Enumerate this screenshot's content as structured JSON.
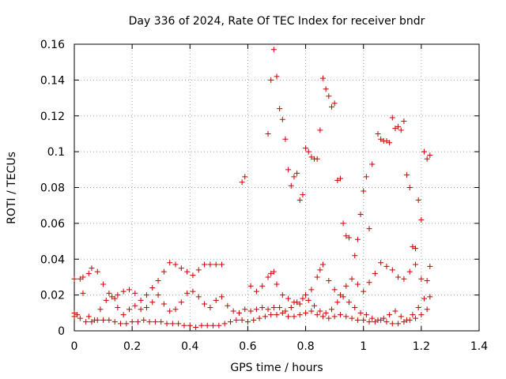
{
  "chart_data": {
    "type": "scatter",
    "title": "Day 336 of 2024, Rate Of TEC Index for receiver bndr",
    "xlabel": "GPS time / hours",
    "ylabel": "ROTI / TECUs",
    "xlim": [
      0,
      1.4
    ],
    "ylim": [
      0,
      0.16
    ],
    "x_ticks": [
      "0",
      "0.2",
      "0.4",
      "0.6",
      "0.8",
      "1",
      "1.2",
      "1.4"
    ],
    "y_ticks": [
      "0",
      "0.02",
      "0.04",
      "0.06",
      "0.08",
      "0.1",
      "0.12",
      "0.14",
      "0.16"
    ],
    "grid": true,
    "marker": "+",
    "color": "#cc0000",
    "series": [
      {
        "points": [
          [
            0.0,
            0.029
          ],
          [
            0.02,
            0.029
          ],
          [
            0.03,
            0.03
          ],
          [
            0.05,
            0.032
          ],
          [
            0.06,
            0.035
          ],
          [
            0.08,
            0.033
          ],
          [
            0.1,
            0.026
          ],
          [
            0.12,
            0.021
          ],
          [
            0.14,
            0.018
          ],
          [
            0.15,
            0.02
          ],
          [
            0.17,
            0.022
          ],
          [
            0.19,
            0.023
          ],
          [
            0.21,
            0.021
          ],
          [
            0.23,
            0.017
          ],
          [
            0.25,
            0.02
          ],
          [
            0.27,
            0.024
          ],
          [
            0.29,
            0.028
          ],
          [
            0.31,
            0.033
          ],
          [
            0.33,
            0.038
          ],
          [
            0.35,
            0.037
          ],
          [
            0.37,
            0.035
          ],
          [
            0.39,
            0.033
          ],
          [
            0.41,
            0.031
          ],
          [
            0.43,
            0.034
          ],
          [
            0.45,
            0.037
          ],
          [
            0.47,
            0.037
          ],
          [
            0.49,
            0.037
          ],
          [
            0.51,
            0.037
          ],
          [
            0.58,
            0.083
          ],
          [
            0.59,
            0.086
          ],
          [
            0.61,
            0.025
          ],
          [
            0.63,
            0.022
          ],
          [
            0.65,
            0.025
          ],
          [
            0.67,
            0.03
          ],
          [
            0.68,
            0.032
          ],
          [
            0.69,
            0.033
          ],
          [
            0.7,
            0.026
          ],
          [
            0.72,
            0.02
          ],
          [
            0.74,
            0.018
          ],
          [
            0.76,
            0.016
          ],
          [
            0.78,
            0.015
          ],
          [
            0.8,
            0.02
          ],
          [
            0.82,
            0.023
          ],
          [
            0.84,
            0.03
          ],
          [
            0.85,
            0.034
          ],
          [
            0.86,
            0.037
          ],
          [
            0.88,
            0.028
          ],
          [
            0.9,
            0.023
          ],
          [
            0.92,
            0.02
          ],
          [
            0.94,
            0.025
          ],
          [
            0.96,
            0.029
          ],
          [
            0.98,
            0.026
          ],
          [
            1.0,
            0.022
          ],
          [
            1.02,
            0.027
          ],
          [
            1.04,
            0.032
          ],
          [
            1.06,
            0.038
          ],
          [
            1.08,
            0.036
          ],
          [
            1.1,
            0.034
          ],
          [
            1.12,
            0.03
          ],
          [
            1.14,
            0.029
          ],
          [
            1.16,
            0.033
          ],
          [
            1.18,
            0.037
          ],
          [
            1.2,
            0.029
          ],
          [
            1.22,
            0.028
          ],
          [
            1.23,
            0.036
          ]
        ]
      },
      {
        "points": [
          [
            0.0,
            0.01
          ],
          [
            0.01,
            0.009
          ],
          [
            0.03,
            0.021
          ],
          [
            0.05,
            0.008
          ],
          [
            0.07,
            0.006
          ],
          [
            0.09,
            0.012
          ],
          [
            0.11,
            0.017
          ],
          [
            0.13,
            0.019
          ],
          [
            0.15,
            0.013
          ],
          [
            0.17,
            0.009
          ],
          [
            0.19,
            0.012
          ],
          [
            0.21,
            0.014
          ],
          [
            0.23,
            0.012
          ],
          [
            0.25,
            0.013
          ],
          [
            0.27,
            0.016
          ],
          [
            0.29,
            0.02
          ],
          [
            0.31,
            0.015
          ],
          [
            0.33,
            0.011
          ],
          [
            0.35,
            0.012
          ],
          [
            0.37,
            0.016
          ],
          [
            0.39,
            0.021
          ],
          [
            0.41,
            0.022
          ],
          [
            0.43,
            0.019
          ],
          [
            0.45,
            0.015
          ],
          [
            0.47,
            0.013
          ],
          [
            0.49,
            0.017
          ],
          [
            0.51,
            0.019
          ],
          [
            0.53,
            0.014
          ],
          [
            0.55,
            0.011
          ],
          [
            0.57,
            0.01
          ],
          [
            0.59,
            0.012
          ],
          [
            0.61,
            0.011
          ],
          [
            0.63,
            0.012
          ],
          [
            0.65,
            0.013
          ],
          [
            0.67,
            0.012
          ],
          [
            0.69,
            0.013
          ],
          [
            0.71,
            0.013
          ],
          [
            0.73,
            0.011
          ],
          [
            0.75,
            0.013
          ],
          [
            0.77,
            0.016
          ],
          [
            0.79,
            0.018
          ],
          [
            0.81,
            0.017
          ],
          [
            0.83,
            0.014
          ],
          [
            0.85,
            0.011
          ],
          [
            0.87,
            0.01
          ],
          [
            0.89,
            0.012
          ],
          [
            0.91,
            0.016
          ],
          [
            0.93,
            0.019
          ],
          [
            0.95,
            0.016
          ],
          [
            0.97,
            0.013
          ],
          [
            0.99,
            0.01
          ],
          [
            1.01,
            0.009
          ],
          [
            1.03,
            0.007
          ],
          [
            1.05,
            0.006
          ],
          [
            1.07,
            0.007
          ],
          [
            1.09,
            0.009
          ],
          [
            1.11,
            0.011
          ],
          [
            1.13,
            0.008
          ],
          [
            1.15,
            0.006
          ],
          [
            1.17,
            0.009
          ],
          [
            1.19,
            0.013
          ],
          [
            1.21,
            0.018
          ],
          [
            1.23,
            0.019
          ]
        ]
      },
      {
        "points": [
          [
            0.0,
            0.008
          ],
          [
            0.02,
            0.007
          ],
          [
            0.04,
            0.005
          ],
          [
            0.06,
            0.005
          ],
          [
            0.08,
            0.006
          ],
          [
            0.1,
            0.006
          ],
          [
            0.12,
            0.006
          ],
          [
            0.14,
            0.005
          ],
          [
            0.16,
            0.004
          ],
          [
            0.18,
            0.004
          ],
          [
            0.2,
            0.005
          ],
          [
            0.22,
            0.005
          ],
          [
            0.24,
            0.006
          ],
          [
            0.26,
            0.005
          ],
          [
            0.28,
            0.005
          ],
          [
            0.3,
            0.005
          ],
          [
            0.32,
            0.004
          ],
          [
            0.34,
            0.004
          ],
          [
            0.36,
            0.004
          ],
          [
            0.38,
            0.003
          ],
          [
            0.4,
            0.003
          ],
          [
            0.42,
            0.002
          ],
          [
            0.44,
            0.003
          ],
          [
            0.46,
            0.003
          ],
          [
            0.48,
            0.003
          ],
          [
            0.5,
            0.003
          ],
          [
            0.52,
            0.004
          ],
          [
            0.54,
            0.005
          ],
          [
            0.56,
            0.006
          ],
          [
            0.58,
            0.006
          ],
          [
            0.6,
            0.005
          ],
          [
            0.62,
            0.006
          ],
          [
            0.64,
            0.007
          ],
          [
            0.66,
            0.008
          ],
          [
            0.68,
            0.009
          ],
          [
            0.7,
            0.009
          ],
          [
            0.72,
            0.01
          ],
          [
            0.74,
            0.008
          ],
          [
            0.76,
            0.008
          ],
          [
            0.78,
            0.009
          ],
          [
            0.8,
            0.01
          ],
          [
            0.82,
            0.011
          ],
          [
            0.84,
            0.009
          ],
          [
            0.86,
            0.008
          ],
          [
            0.88,
            0.007
          ],
          [
            0.9,
            0.008
          ],
          [
            0.92,
            0.009
          ],
          [
            0.94,
            0.008
          ],
          [
            0.96,
            0.007
          ],
          [
            0.98,
            0.006
          ],
          [
            1.0,
            0.006
          ],
          [
            1.02,
            0.005
          ],
          [
            1.04,
            0.005
          ],
          [
            1.06,
            0.006
          ],
          [
            1.08,
            0.005
          ],
          [
            1.1,
            0.004
          ],
          [
            1.12,
            0.004
          ],
          [
            1.14,
            0.005
          ],
          [
            1.16,
            0.006
          ],
          [
            1.18,
            0.007
          ],
          [
            1.2,
            0.009
          ],
          [
            1.22,
            0.012
          ]
        ]
      },
      {
        "points": [
          [
            0.67,
            0.11
          ],
          [
            0.68,
            0.14
          ],
          [
            0.69,
            0.157
          ],
          [
            0.7,
            0.142
          ],
          [
            0.71,
            0.124
          ],
          [
            0.72,
            0.118
          ],
          [
            0.73,
            0.107
          ],
          [
            0.74,
            0.09
          ],
          [
            0.75,
            0.081
          ],
          [
            0.76,
            0.086
          ],
          [
            0.77,
            0.088
          ],
          [
            0.78,
            0.073
          ],
          [
            0.79,
            0.076
          ],
          [
            0.8,
            0.102
          ],
          [
            0.81,
            0.1
          ],
          [
            0.82,
            0.097
          ],
          [
            0.83,
            0.096
          ],
          [
            0.84,
            0.096
          ],
          [
            0.85,
            0.112
          ],
          [
            0.86,
            0.141
          ],
          [
            0.87,
            0.135
          ],
          [
            0.88,
            0.131
          ],
          [
            0.89,
            0.125
          ],
          [
            0.9,
            0.127
          ],
          [
            0.91,
            0.084
          ],
          [
            0.92,
            0.085
          ],
          [
            0.93,
            0.06
          ],
          [
            0.94,
            0.053
          ],
          [
            0.95,
            0.052
          ],
          [
            0.97,
            0.042
          ],
          [
            0.98,
            0.051
          ],
          [
            0.99,
            0.065
          ],
          [
            1.0,
            0.078
          ],
          [
            1.01,
            0.086
          ],
          [
            1.02,
            0.057
          ],
          [
            1.03,
            0.093
          ],
          [
            1.05,
            0.11
          ],
          [
            1.06,
            0.107
          ],
          [
            1.07,
            0.106
          ],
          [
            1.08,
            0.106
          ],
          [
            1.09,
            0.105
          ],
          [
            1.1,
            0.119
          ],
          [
            1.11,
            0.113
          ],
          [
            1.12,
            0.114
          ],
          [
            1.13,
            0.112
          ],
          [
            1.14,
            0.117
          ],
          [
            1.15,
            0.087
          ],
          [
            1.16,
            0.08
          ],
          [
            1.17,
            0.047
          ],
          [
            1.18,
            0.046
          ],
          [
            1.19,
            0.073
          ],
          [
            1.2,
            0.062
          ],
          [
            1.21,
            0.1
          ],
          [
            1.22,
            0.096
          ],
          [
            1.23,
            0.098
          ]
        ]
      }
    ]
  }
}
